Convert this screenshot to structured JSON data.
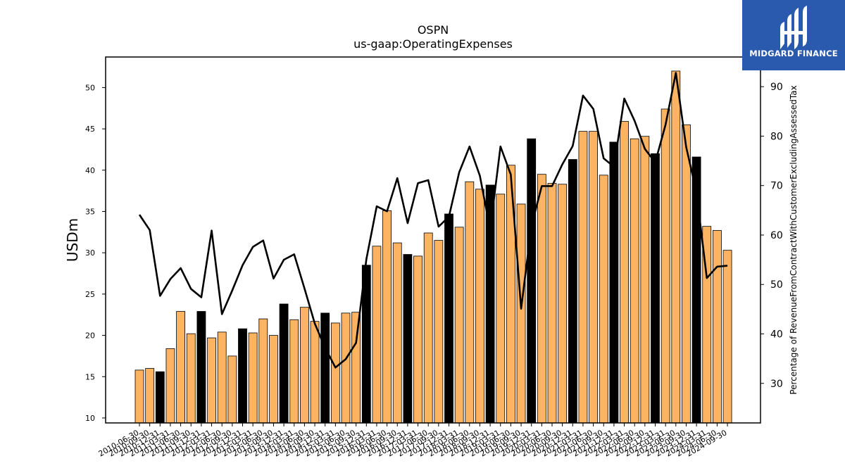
{
  "logo": {
    "text": "MIDGARD FINANCE",
    "background": "#2a5aad",
    "icon": "midgard-m-icon"
  },
  "chart_data": {
    "type": "bar",
    "title": "OSPN",
    "subtitle": "us-gaap:OperatingExpenses",
    "ylabel": "USDm",
    "ylabel_right": "Percentage of RevenueFromContractWithCustomerExcludingAssessedTax",
    "ylim": [
      9.4,
      53.7
    ],
    "ylim_right": [
      22,
      96
    ],
    "yticks": [
      10,
      15,
      20,
      25,
      30,
      35,
      40,
      45,
      50
    ],
    "yticks_right": [
      30,
      40,
      50,
      60,
      70,
      80,
      90
    ],
    "colors": {
      "bar": "#fdb462",
      "bar_q4": "#000000",
      "line": "#000000",
      "edge": "#000000"
    },
    "categories": [
      "2010-06-30",
      "2010-09-30",
      "2010-12-31",
      "2011-03-31",
      "2011-06-30",
      "2011-09-30",
      "2011-12-31",
      "2012-03-31",
      "2012-06-30",
      "2012-09-30",
      "2012-12-31",
      "2013-03-31",
      "2013-06-30",
      "2013-09-30",
      "2013-12-31",
      "2014-03-31",
      "2014-06-30",
      "2014-09-30",
      "2014-12-31",
      "2015-03-31",
      "2015-06-30",
      "2015-09-30",
      "2015-12-31",
      "2016-03-31",
      "2016-06-30",
      "2016-09-30",
      "2016-12-31",
      "2017-03-31",
      "2017-06-30",
      "2017-09-30",
      "2017-12-31",
      "2018-03-31",
      "2018-06-30",
      "2018-09-30",
      "2018-12-31",
      "2019-03-31",
      "2019-06-30",
      "2019-09-30",
      "2019-12-31",
      "2020-03-31",
      "2020-06-30",
      "2020-09-30",
      "2020-12-31",
      "2021-03-31",
      "2021-06-30",
      "2021-09-30",
      "2021-12-31",
      "2022-03-31",
      "2022-06-30",
      "2022-09-30",
      "2022-12-31",
      "2023-03-31",
      "2023-06-30",
      "2023-09-30",
      "2023-12-31",
      "2024-03-31",
      "2024-06-30",
      "2024-09-30"
    ],
    "xtick_labels": [
      "2010-06-30",
      "2010-09-30",
      "2010-12-31",
      "2011-03-31",
      "2011-06-30",
      "2011-09-30",
      "2011-12-31",
      "2012-03-31",
      "2012-06-30",
      "2012-09-30",
      "2012-12-31",
      "2013-03-31",
      "2013-06-30",
      "2013-09-30",
      "2013-12-31",
      "2014-03-31",
      "2014-06-30",
      "2014-09-30",
      "2014-12-31",
      "2015-03-31",
      "2015-06-30",
      "2015-09-30",
      "2015-12-31",
      "2016-03-31",
      "2016-06-30",
      "2016-09-30",
      "2016-12-31",
      "2017-03-31",
      "2017-06-30",
      "2017-09-30",
      "2017-12-31",
      "2018-03-31",
      "2018-06-30",
      "2018-09-30",
      "2018-12-31",
      "2019-03-31",
      "2019-06-30",
      "2019-09-30",
      "2019-12-31",
      "2020-03-31",
      "2020-06-30",
      "2020-09-30",
      "2020-12-31",
      "2021-03-31",
      "2021-06-30",
      "2021-09-30",
      "2021-12-31",
      "2022-03-31",
      "2022-06-30",
      "2022-09-30",
      "2022-12-31",
      "2023-03-31",
      "2023-06-30",
      "2023-09-30",
      "2023-12-31",
      "2024-03-31",
      "2024-06-30",
      "2024-09-30"
    ],
    "series": [
      {
        "values": [
          15.8,
          16.0,
          15.6,
          18.4,
          22.9,
          20.2,
          22.9,
          19.7,
          20.4,
          17.5,
          20.8,
          20.3,
          22.0,
          20.0,
          23.8,
          21.9,
          23.4,
          21.7,
          22.7,
          21.5,
          22.7,
          22.8,
          28.5,
          30.8,
          35.1,
          31.2,
          29.8,
          29.6,
          32.4,
          31.5,
          34.7,
          33.1,
          38.6,
          37.7,
          38.2,
          37.1,
          40.6,
          35.9,
          43.8,
          39.5,
          38.4,
          38.3,
          41.3,
          44.7,
          44.7,
          39.4,
          43.4,
          45.9,
          43.8,
          44.1,
          42.0,
          47.4,
          52.0,
          45.5,
          41.6,
          33.2,
          32.7,
          30.3
        ]
      },
      {
        "axis": "right",
        "values": [
          64.1,
          61.0,
          47.7,
          51.1,
          53.3,
          49.1,
          47.4,
          60.9,
          44.0,
          48.8,
          53.9,
          57.6,
          58.9,
          51.2,
          55.0,
          56.1,
          49.2,
          42.1,
          37.2,
          33.2,
          34.9,
          38.2,
          55.1,
          65.8,
          64.8,
          71.5,
          62.4,
          70.5,
          71.1,
          61.7,
          63.7,
          72.7,
          77.9,
          72.0,
          61.1,
          77.9,
          72.2,
          45.1,
          61.8,
          69.9,
          69.9,
          74.3,
          78.0,
          88.2,
          85.5,
          75.5,
          73.8,
          87.6,
          83.1,
          77.4,
          74.7,
          82.3,
          92.8,
          77.8,
          68.6,
          51.3,
          53.6,
          53.8
        ]
      }
    ]
  }
}
